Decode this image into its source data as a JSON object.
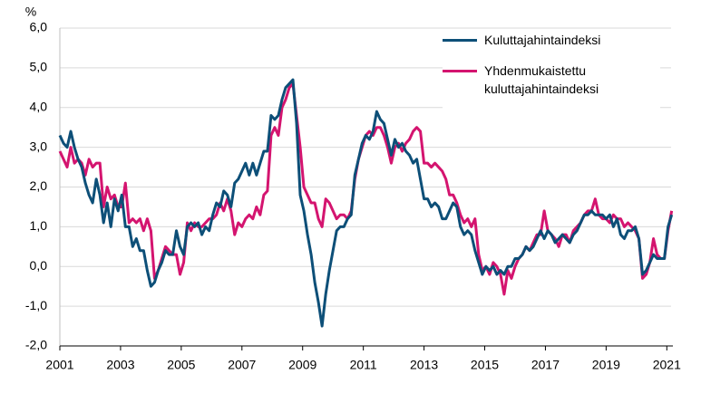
{
  "chart_data": {
    "type": "line",
    "ylabel": "%",
    "x": [
      2001,
      2001.12,
      2001.24,
      2001.36,
      2001.48,
      2001.6,
      2001.72,
      2001.84,
      2001.96,
      2002.08,
      2002.2,
      2002.32,
      2002.44,
      2002.56,
      2002.68,
      2002.8,
      2002.92,
      2003.04,
      2003.16,
      2003.28,
      2003.4,
      2003.52,
      2003.64,
      2003.76,
      2003.88,
      2004,
      2004.12,
      2004.24,
      2004.36,
      2004.48,
      2004.6,
      2004.72,
      2004.84,
      2004.96,
      2005.08,
      2005.2,
      2005.32,
      2005.44,
      2005.56,
      2005.68,
      2005.8,
      2005.92,
      2006.04,
      2006.16,
      2006.28,
      2006.4,
      2006.52,
      2006.64,
      2006.76,
      2006.88,
      2007,
      2007.12,
      2007.24,
      2007.36,
      2007.48,
      2007.6,
      2007.72,
      2007.84,
      2007.96,
      2008.08,
      2008.2,
      2008.32,
      2008.44,
      2008.56,
      2008.68,
      2008.8,
      2008.92,
      2009.04,
      2009.16,
      2009.28,
      2009.4,
      2009.52,
      2009.64,
      2009.76,
      2009.88,
      2010,
      2010.12,
      2010.24,
      2010.36,
      2010.48,
      2010.6,
      2010.72,
      2010.84,
      2010.96,
      2011.08,
      2011.2,
      2011.32,
      2011.44,
      2011.56,
      2011.68,
      2011.8,
      2011.92,
      2012.04,
      2012.16,
      2012.28,
      2012.4,
      2012.52,
      2012.64,
      2012.76,
      2012.88,
      2013,
      2013.12,
      2013.24,
      2013.36,
      2013.48,
      2013.6,
      2013.72,
      2013.84,
      2013.96,
      2014.08,
      2014.2,
      2014.32,
      2014.44,
      2014.56,
      2014.68,
      2014.8,
      2014.92,
      2015.04,
      2015.16,
      2015.28,
      2015.4,
      2015.52,
      2015.64,
      2015.76,
      2015.88,
      2016,
      2016.12,
      2016.24,
      2016.36,
      2016.48,
      2016.6,
      2016.72,
      2016.84,
      2016.96,
      2017.08,
      2017.2,
      2017.32,
      2017.44,
      2017.56,
      2017.68,
      2017.8,
      2017.92,
      2018.04,
      2018.16,
      2018.28,
      2018.4,
      2018.52,
      2018.64,
      2018.76,
      2018.88,
      2019,
      2019.12,
      2019.24,
      2019.36,
      2019.48,
      2019.6,
      2019.72,
      2019.84,
      2019.96,
      2020.08,
      2020.2,
      2020.32,
      2020.44,
      2020.56,
      2020.68,
      2020.8,
      2020.92,
      2021.04,
      2021.16
    ],
    "series": [
      {
        "name": "Kuluttajahintaindeksi",
        "color": "#0d4f78",
        "values": [
          3.3,
          3.1,
          3.0,
          3.4,
          3.0,
          2.7,
          2.5,
          2.1,
          1.8,
          1.6,
          2.2,
          1.8,
          1.1,
          1.6,
          1.0,
          1.7,
          1.4,
          1.8,
          1.0,
          1.0,
          0.5,
          0.7,
          0.4,
          0.4,
          -0.1,
          -0.5,
          -0.4,
          -0.1,
          0.1,
          0.4,
          0.3,
          0.3,
          0.9,
          0.5,
          0.3,
          1.0,
          1.1,
          1.0,
          1.1,
          0.8,
          1.0,
          0.9,
          1.3,
          1.6,
          1.5,
          1.9,
          1.8,
          1.5,
          2.1,
          2.2,
          2.4,
          2.6,
          2.3,
          2.6,
          2.3,
          2.6,
          2.9,
          2.9,
          3.8,
          3.7,
          3.8,
          4.2,
          4.5,
          4.6,
          4.7,
          3.6,
          1.8,
          1.4,
          0.8,
          0.3,
          -0.4,
          -0.9,
          -1.5,
          -0.7,
          -0.1,
          0.4,
          0.9,
          1.0,
          1.0,
          1.2,
          1.3,
          2.3,
          2.7,
          3.1,
          3.3,
          3.2,
          3.4,
          3.9,
          3.7,
          3.6,
          3.2,
          2.8,
          3.2,
          3.0,
          3.1,
          2.9,
          2.8,
          2.6,
          2.7,
          2.2,
          1.7,
          1.7,
          1.5,
          1.6,
          1.5,
          1.2,
          1.2,
          1.4,
          1.6,
          1.5,
          1.0,
          0.8,
          0.9,
          0.8,
          0.4,
          0.1,
          -0.2,
          0.0,
          -0.1,
          0.0,
          -0.2,
          -0.1,
          -0.2,
          0.0,
          0.0,
          0.2,
          0.2,
          0.3,
          0.5,
          0.4,
          0.5,
          0.7,
          0.9,
          0.7,
          0.9,
          0.8,
          0.6,
          0.7,
          0.8,
          0.7,
          0.6,
          0.8,
          0.9,
          1.1,
          1.3,
          1.3,
          1.4,
          1.3,
          1.3,
          1.3,
          1.2,
          1.3,
          1.0,
          1.2,
          0.8,
          0.7,
          0.9,
          0.9,
          1.0,
          0.7,
          -0.2,
          -0.1,
          0.1,
          0.3,
          0.2,
          0.2,
          0.2,
          1.0,
          1.3
        ]
      },
      {
        "name": "Yhdenmukaistettu kuluttajahintaindeksi",
        "color": "#d4146f",
        "values": [
          2.9,
          2.7,
          2.5,
          3.0,
          2.6,
          2.7,
          2.6,
          2.3,
          2.7,
          2.5,
          2.6,
          2.6,
          1.5,
          2.0,
          1.7,
          1.8,
          1.5,
          1.5,
          2.1,
          1.1,
          1.2,
          1.1,
          1.2,
          0.9,
          1.2,
          0.9,
          -0.3,
          -0.1,
          0.2,
          0.5,
          0.4,
          0.3,
          0.3,
          -0.2,
          0.1,
          1.1,
          0.9,
          1.1,
          1.0,
          1.0,
          1.1,
          1.2,
          1.2,
          1.3,
          1.6,
          1.4,
          1.7,
          1.4,
          0.8,
          1.1,
          1.0,
          1.2,
          1.3,
          1.2,
          1.5,
          1.3,
          1.8,
          1.9,
          3.3,
          3.5,
          3.3,
          4.0,
          4.2,
          4.5,
          4.6,
          3.8,
          3.0,
          2.0,
          1.8,
          1.6,
          1.6,
          1.2,
          1.0,
          1.7,
          1.6,
          1.4,
          1.2,
          1.3,
          1.3,
          1.2,
          1.4,
          2.2,
          2.7,
          3.0,
          3.3,
          3.4,
          3.3,
          3.5,
          3.5,
          3.3,
          3.0,
          2.6,
          3.0,
          3.1,
          2.9,
          3.1,
          3.2,
          3.4,
          3.5,
          3.4,
          2.6,
          2.6,
          2.5,
          2.6,
          2.5,
          2.4,
          2.2,
          1.8,
          1.8,
          1.6,
          1.3,
          1.1,
          1.2,
          1.0,
          1.2,
          0.3,
          -0.1,
          0.0,
          -0.2,
          0.1,
          0.0,
          -0.2,
          -0.7,
          -0.1,
          -0.3,
          0.0,
          0.2,
          0.3,
          0.5,
          0.4,
          0.6,
          0.8,
          0.8,
          1.4,
          0.9,
          0.8,
          0.7,
          0.5,
          0.8,
          0.8,
          0.6,
          0.9,
          1.0,
          1.1,
          1.3,
          1.4,
          1.4,
          1.7,
          1.3,
          1.2,
          1.2,
          1.1,
          1.3,
          1.2,
          1.2,
          1.0,
          1.1,
          1.0,
          0.9,
          0.7,
          -0.3,
          -0.2,
          0.1,
          0.7,
          0.3,
          0.2,
          0.2,
          0.9,
          1.4
        ]
      }
    ],
    "xlim": [
      2001,
      2021.2
    ],
    "xticks": [
      2001,
      2003,
      2005,
      2007,
      2009,
      2011,
      2013,
      2015,
      2017,
      2019,
      2021
    ],
    "ylim": [
      -2,
      6
    ],
    "yticks": [
      {
        "value": -2,
        "label": "-2,0"
      },
      {
        "value": -1,
        "label": "-1,0"
      },
      {
        "value": 0,
        "label": "0,0"
      },
      {
        "value": 1,
        "label": "1,0"
      },
      {
        "value": 2,
        "label": "2,0"
      },
      {
        "value": 3,
        "label": "3,0"
      },
      {
        "value": 4,
        "label": "4,0"
      },
      {
        "value": 5,
        "label": "5,0"
      },
      {
        "value": 6,
        "label": "6,0"
      }
    ],
    "grid": true,
    "legend": "upper right"
  }
}
